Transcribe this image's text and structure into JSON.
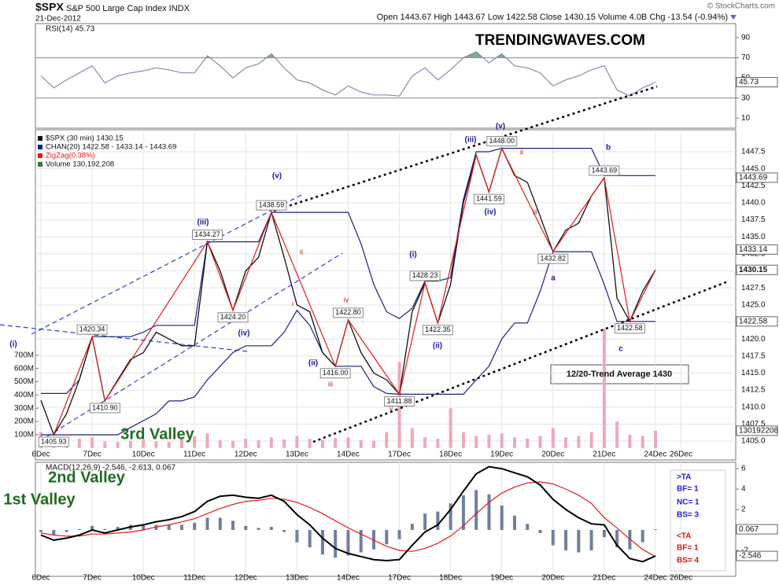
{
  "header": {
    "symbol": "$SPX",
    "name": "S&P 500 Large Cap Index INDX",
    "date": "21-Dec-2012",
    "quote": "Open 1443.67 High 1443.67 Low 1422.58 Close 1430.15 Volume 4.0B Chg -13.54 (-0.94%)",
    "credit": "© StockCharts.com"
  },
  "annotations": [
    "(i)",
    "(iii)",
    "(v)",
    "(iv)",
    "(ii)",
    "(i)",
    "(ii)",
    "(iii)",
    "(v)",
    "(iv)",
    "b",
    "a",
    "c",
    "ii",
    "i",
    "iii",
    "iv",
    "v",
    "ii",
    "iii",
    "3rd Valley",
    "2nd Valley",
    "1st Valley",
    "TRENDINGWAVES.COM",
    "12/20-Trend Average 1430",
    ">TA",
    "BF= 1",
    "NC= 1",
    "BS= 3",
    "<TA",
    "BF= 1",
    "BS= 4"
  ],
  "chart_data": [
    {
      "type": "line",
      "label": "RSI(14) 45.73",
      "color": "#7d8fb0",
      "fill_color": "#86a898",
      "values": [
        52,
        40,
        48,
        55,
        62,
        45,
        52,
        55,
        57,
        60,
        58,
        55,
        55,
        72,
        62,
        50,
        60,
        64,
        74,
        60,
        48,
        45,
        38,
        33,
        42,
        36,
        33,
        33,
        32,
        52,
        60,
        48,
        58,
        70,
        76,
        65,
        74,
        62,
        60,
        55,
        42,
        48,
        52,
        58,
        62,
        38,
        32,
        40,
        45.73,
        null,
        null,
        null,
        null,
        null,
        null
      ],
      "ylim": [
        0,
        104
      ],
      "yticks": [
        10,
        30,
        50,
        70,
        90
      ],
      "hlines": [
        70,
        30
      ],
      "overbought": 70,
      "last": 45.73
    },
    {
      "type": "line",
      "grid": true,
      "categories": [
        "6Dec",
        null,
        null,
        null,
        "7Dec",
        null,
        null,
        null,
        "10Dec",
        null,
        null,
        null,
        "11Dec",
        null,
        null,
        null,
        "12Dec",
        null,
        null,
        null,
        "13Dec",
        null,
        null,
        null,
        "14Dec",
        null,
        null,
        null,
        "17Dec",
        null,
        null,
        null,
        "18Dec",
        null,
        null,
        null,
        "19Dec",
        null,
        null,
        null,
        "20Dec",
        null,
        null,
        null,
        "21Dec",
        null,
        null,
        null,
        "24Dec",
        null,
        "26Dec",
        null,
        null,
        null,
        null
      ],
      "series": [
        {
          "name": "$SPX (30 min) 1430.15",
          "color": "#111111",
          "values": [
            1411,
            1405.93,
            1409,
            1414,
            1420.34,
            1410.9,
            1414,
            1417,
            1418,
            1421,
            1420,
            1419,
            1419,
            1434.27,
            1430,
            1424.2,
            1430,
            1432,
            1438.59,
            1432,
            1425,
            1424,
            1418,
            1416,
            1422.8,
            1418,
            1415,
            1414,
            1411.88,
            1424,
            1428.23,
            1422.35,
            1428,
            1440,
            1447,
            1441.59,
            1448,
            1444,
            1443,
            1438,
            1432.82,
            1436,
            1437,
            1441,
            1443.69,
            1426,
            1422.58,
            1427,
            1430.15,
            null,
            null,
            null,
            null,
            null,
            null
          ]
        }
      ],
      "channel": {
        "name": "CHAN(20) 1422.58 - 1433.14 - 1443.69",
        "color": "#1a237e",
        "upper": [
          1412,
          1412,
          1412,
          1414,
          1420.34,
          1420.34,
          1420.34,
          1420.34,
          1421,
          1422,
          1422,
          1422,
          1422,
          1434.27,
          1434.27,
          1434.27,
          1434.27,
          1434.27,
          1438.59,
          1438.59,
          1438.59,
          1438.59,
          1438.59,
          1438.59,
          1438.59,
          1434,
          1428,
          1424,
          1423,
          1424.5,
          1428.5,
          1428.5,
          1429,
          1440.5,
          1447.5,
          1447.5,
          1448,
          1448,
          1448,
          1448,
          1448,
          1448,
          1448,
          1448,
          1444,
          1444,
          1444,
          1444,
          1444,
          null,
          null,
          null,
          null,
          null,
          null
        ],
        "lower": [
          1405.93,
          1405.93,
          1405.93,
          1405.93,
          1405.93,
          1405.93,
          1405.93,
          1407,
          1408,
          1409,
          1410.9,
          1410.9,
          1411.5,
          1414,
          1416,
          1418,
          1419,
          1419,
          1419,
          1421,
          1424.2,
          1422,
          1418,
          1416,
          1416,
          1416,
          1413,
          1412,
          1411.88,
          1411.88,
          1411.88,
          1411.88,
          1411.88,
          1411.88,
          1414,
          1416,
          1420,
          1422.35,
          1422.35,
          1427,
          1432.82,
          1432.82,
          1432.82,
          1432.82,
          1428,
          1422.58,
          1422.58,
          1422.58,
          1422.58,
          null,
          null,
          null,
          null,
          null,
          null
        ]
      },
      "zigzag": {
        "name": "ZigZag(0.38%)",
        "color": "#e21b1b",
        "x": [
          1,
          4,
          5,
          13,
          15,
          18,
          23,
          24,
          28,
          30,
          31,
          34,
          35,
          36,
          40,
          44,
          46,
          48
        ],
        "values": [
          1405.93,
          1420.34,
          1410.9,
          1434.27,
          1424.2,
          1438.59,
          1416,
          1422.8,
          1411.88,
          1428.23,
          1422.35,
          1447,
          1441.59,
          1448,
          1432.82,
          1443.69,
          1422.58,
          1430.15
        ],
        "value_labels": [
          "1405.93",
          "1420.34",
          "1410.90",
          "1434.27",
          "1424.20",
          "1438.59",
          "1416.00",
          "1422.80",
          "1411.88",
          "1428.23",
          "1422.35",
          null,
          "1441.59",
          "1448.00",
          "1432.82",
          "1443.69",
          "1422.58",
          null
        ]
      },
      "volume": {
        "name": "Volume 130,192,208",
        "color": "#f0a8b8",
        "legend_color": "#2e7d32",
        "axis": "y2",
        "values": [
          120,
          60,
          55,
          70,
          80,
          50,
          45,
          55,
          60,
          50,
          45,
          70,
          90,
          110,
          60,
          55,
          70,
          60,
          80,
          65,
          90,
          70,
          60,
          75,
          80,
          60,
          55,
          120,
          650,
          150,
          80,
          70,
          300,
          120,
          90,
          100,
          110,
          80,
          70,
          90,
          150,
          80,
          90,
          120,
          900,
          200,
          100,
          90,
          130.192208,
          null,
          null,
          null,
          null,
          null,
          null
        ],
        "last_label": "130192208"
      },
      "ylim": [
        1402.23,
        1450.73
      ],
      "yticks": [
        {
          "value": 1405,
          "label": "1405.0"
        },
        1407.5,
        {
          "value": 1410,
          "label": "1410.0"
        },
        1412.5,
        {
          "value": 1415,
          "label": "1415.0"
        },
        1417.5,
        {
          "value": 1420,
          "label": "1420.0"
        },
        1422.5,
        {
          "value": 1425,
          "label": "1425.0"
        },
        1427.5,
        {
          "value": 1430,
          "label": "1430.0"
        },
        1432.5,
        {
          "value": 1435,
          "label": "1435.0"
        },
        1437.5,
        {
          "value": 1440,
          "label": "1440.0"
        },
        1442.5,
        {
          "value": 1445,
          "label": "1445.0"
        },
        1447.5
      ],
      "y2lim": [
        -90,
        2400
      ],
      "y2ticks": [
        {
          "value": 100,
          "label": "100M"
        },
        {
          "value": 200,
          "label": "200M"
        },
        {
          "value": 300,
          "label": "300M"
        },
        {
          "value": 400,
          "label": "400M"
        },
        {
          "value": 500,
          "label": "500M"
        },
        {
          "value": 600,
          "label": "600M"
        },
        {
          "value": 700,
          "label": "700M"
        }
      ],
      "markers": [
        1443.69,
        1433.14,
        1430.15,
        1422.58
      ]
    },
    {
      "type": "line",
      "label": "MACD(12,26,9) -2.546, -2.613, 0.067",
      "categories": [
        "6Dec",
        null,
        null,
        null,
        "7Dec",
        null,
        null,
        null,
        "10Dec",
        null,
        null,
        null,
        "11Dec",
        null,
        null,
        null,
        "12Dec",
        null,
        null,
        null,
        "13Dec",
        null,
        null,
        null,
        "14Dec",
        null,
        null,
        null,
        "17Dec",
        null,
        null,
        null,
        "18Dec",
        null,
        null,
        null,
        "19Dec",
        null,
        null,
        null,
        "20Dec",
        null,
        null,
        null,
        "21Dec",
        null,
        null,
        null,
        "24Dec",
        null,
        "26Dec",
        null,
        null,
        null,
        null
      ],
      "series": [
        {
          "name": "MACD",
          "color": "#000000",
          "values": [
            -0.5,
            -1,
            -0.8,
            -0.5,
            0,
            -0.3,
            0,
            0.3,
            0.5,
            0.8,
            1,
            1.3,
            1.8,
            2.8,
            3.3,
            3.4,
            3.2,
            3.1,
            3.4,
            2.8,
            1.5,
            0.5,
            -0.8,
            -1.8,
            -2.3,
            -2.6,
            -2.9,
            -3,
            -2.9,
            -1.5,
            -0.2,
            0.5,
            2,
            3.8,
            5.5,
            6.2,
            6,
            5.6,
            5.2,
            4.4,
            3,
            2,
            1.2,
            0.6,
            0.5,
            -1.5,
            -2.8,
            -3.1,
            -2.546,
            null,
            null,
            null,
            null,
            null,
            null
          ]
        },
        {
          "name": "Signal",
          "color": "#e21b1b",
          "values": [
            -0.3,
            -0.5,
            -0.6,
            -0.6,
            -0.4,
            -0.4,
            -0.3,
            -0.2,
            0,
            0.3,
            0.5,
            0.8,
            1.1,
            1.6,
            2.1,
            2.5,
            2.8,
            2.9,
            3.1,
            3,
            2.7,
            2.2,
            1.6,
            0.9,
            0.2,
            -0.4,
            -1,
            -1.6,
            -2,
            -2.1,
            -1.8,
            -1.3,
            -0.6,
            0.4,
            1.6,
            2.7,
            3.6,
            4.2,
            4.6,
            4.7,
            4.5,
            4,
            3.4,
            2.6,
            1.2,
            0.2,
            -0.9,
            -1.9,
            -2.613,
            null,
            null,
            null,
            null,
            null,
            null
          ]
        },
        {
          "name": "Histogram",
          "color": "#6f7f9c",
          "values": [
            -0.2,
            -0.5,
            -0.2,
            0.1,
            0.4,
            0.1,
            0.3,
            0.5,
            0.5,
            0.5,
            0.5,
            0.5,
            0.7,
            1.2,
            1.2,
            0.9,
            0.4,
            0.2,
            0.3,
            -0.2,
            -1.2,
            -1.7,
            -2.4,
            -2.7,
            -2.5,
            -2.2,
            -1.9,
            -1.4,
            -0.9,
            0.6,
            1.6,
            1.8,
            2.6,
            3.4,
            3.9,
            3.5,
            2.4,
            1.4,
            0.6,
            -0.3,
            -1.5,
            -2,
            -2.2,
            -2,
            -0.7,
            -1.7,
            -1.9,
            -1.2,
            0.067,
            null,
            null,
            null,
            null,
            null,
            null
          ]
        }
      ],
      "ylim": [
        -4.54,
        6.62
      ],
      "yticks": [
        -2,
        2,
        4,
        6
      ],
      "markers": [
        0.067,
        -2.546
      ]
    }
  ]
}
